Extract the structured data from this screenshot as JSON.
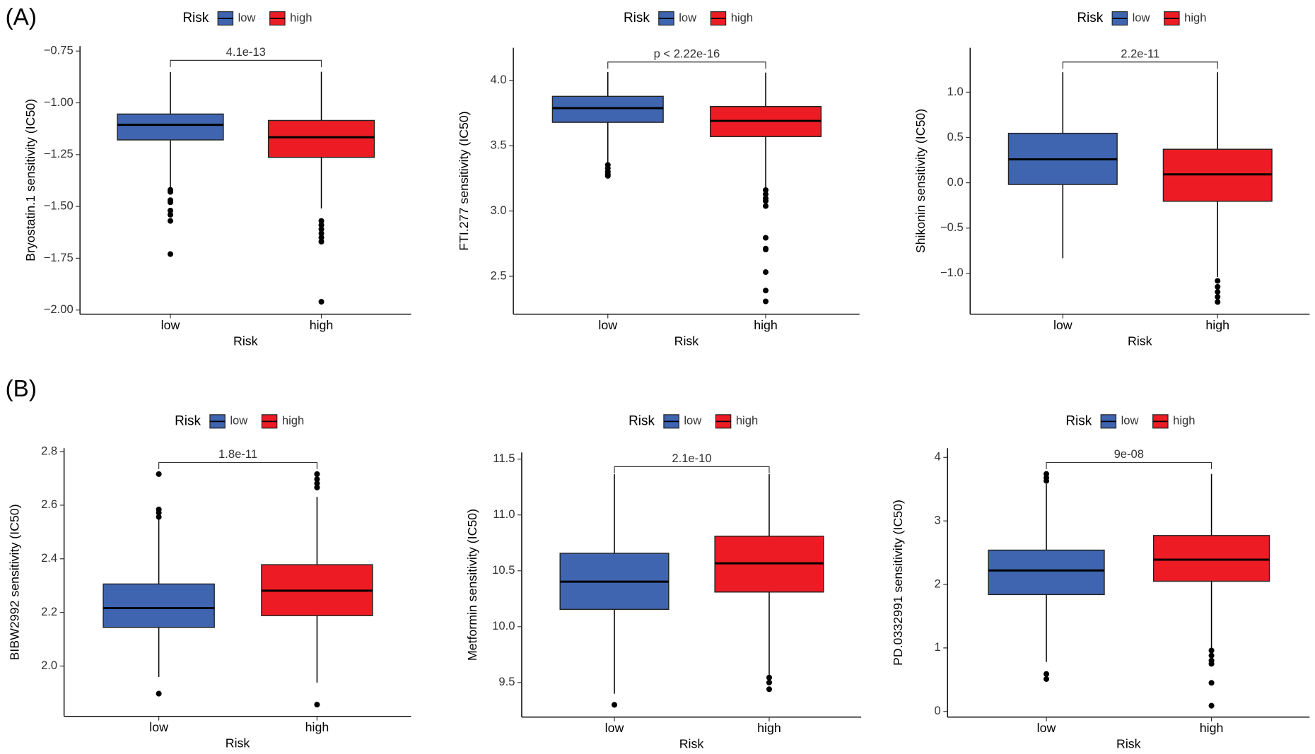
{
  "panel_labels": [
    "(A)",
    "(B)"
  ],
  "chart_data": [
    {
      "type": "box",
      "ylabel": "Bryostatin.1 sensitivity (IC50)",
      "xlabel": "Risk",
      "legend_title": "Risk",
      "annotation": "4.1e-13",
      "categories": [
        "low",
        "high"
      ],
      "ylim": [
        -2.02,
        -0.726
      ],
      "yticks": [
        {
          "value": -0.75,
          "label": "−0.75"
        },
        {
          "value": -1.0,
          "label": "−1.00"
        },
        {
          "value": -1.25,
          "label": "−1.25"
        },
        {
          "value": -1.5,
          "label": "−1.50"
        },
        {
          "value": -1.75,
          "label": "−1.75"
        },
        {
          "value": -2.0,
          "label": "−2.00"
        }
      ],
      "series": [
        {
          "name": "low",
          "color": "#3f65b0",
          "values": {
            "whisker_low": -1.413,
            "q1": -1.179,
            "median": -1.106,
            "q3": -1.054,
            "whisker_high": -0.851,
            "outliers": [
              -1.42,
              -1.43,
              -1.47,
              -1.48,
              -1.52,
              -1.54,
              -1.57,
              -1.73
            ]
          }
        },
        {
          "name": "high",
          "color": "#ed1c24",
          "values": {
            "whisker_low": -1.51,
            "q1": -1.263,
            "median": -1.166,
            "q3": -1.085,
            "whisker_high": -0.85,
            "outliers": [
              -1.57,
              -1.59,
              -1.61,
              -1.63,
              -1.65,
              -1.67,
              -1.96
            ]
          }
        }
      ]
    },
    {
      "type": "box",
      "ylabel": "FTI.277 sensitivity (IC50)",
      "xlabel": "Risk",
      "legend_title": "Risk",
      "annotation": "p < 2.22e-16",
      "categories": [
        "low",
        "high"
      ],
      "ylim": [
        2.21,
        4.25
      ],
      "yticks": [
        {
          "value": 4.0,
          "label": "4.0"
        },
        3.5,
        {
          "value": 3.0,
          "label": "3.0"
        },
        2.5
      ],
      "series": [
        {
          "name": "low",
          "color": "#3f65b0",
          "values": {
            "whisker_low": 3.365,
            "q1": 3.679,
            "median": 3.788,
            "q3": 3.878,
            "whisker_high": 4.064,
            "outliers": [
              3.353,
              3.327,
              3.301,
              3.282,
              3.269
            ]
          }
        },
        {
          "name": "high",
          "color": "#ed1c24",
          "values": {
            "whisker_low": 3.17,
            "q1": 3.57,
            "median": 3.69,
            "q3": 3.8,
            "whisker_high": 4.06,
            "outliers": [
              3.16,
              3.128,
              3.096,
              3.077,
              3.038,
              2.795,
              2.712,
              2.705,
              2.532,
              2.391,
              2.308
            ]
          }
        }
      ]
    },
    {
      "type": "box",
      "ylabel": "Shikonin sensitivity (IC50)",
      "xlabel": "Risk",
      "legend_title": "Risk",
      "annotation": "2.2e-11",
      "categories": [
        "low",
        "high"
      ],
      "ylim": [
        -1.45,
        1.49
      ],
      "yticks": [
        {
          "value": 1.0,
          "label": "1.0"
        },
        0.5,
        {
          "value": 0.0,
          "label": "0.0"
        },
        {
          "value": -0.5,
          "label": "−0.5"
        },
        {
          "value": -1.0,
          "label": "−1.0"
        }
      ],
      "series": [
        {
          "name": "low",
          "color": "#3f65b0",
          "values": {
            "whisker_low": -0.833,
            "q1": -0.019,
            "median": 0.259,
            "q3": 0.546,
            "whisker_high": 1.22,
            "outliers": []
          }
        },
        {
          "name": "high",
          "color": "#ed1c24",
          "values": {
            "whisker_low": -1.04,
            "q1": -0.204,
            "median": 0.093,
            "q3": 0.37,
            "whisker_high": 1.22,
            "outliers": [
              -1.083,
              -1.148,
              -1.204,
              -1.259,
              -1.315
            ]
          }
        }
      ]
    },
    {
      "type": "box",
      "ylabel": "BIBW2992 sensitivity (IC50)",
      "xlabel": "Risk",
      "legend_title": "Risk",
      "annotation": "1.8e-11",
      "categories": [
        "low",
        "high"
      ],
      "ylim": [
        1.8125,
        2.8125
      ],
      "yticks": [
        2.8,
        2.6,
        2.4,
        2.2,
        {
          "value": 2.0,
          "label": "2.0"
        }
      ],
      "series": [
        {
          "name": "low",
          "color": "#3f65b0",
          "values": {
            "whisker_low": 1.959,
            "q1": 2.144,
            "median": 2.216,
            "q3": 2.306,
            "whisker_high": 2.547,
            "outliers": [
              2.716,
              2.584,
              2.572,
              2.556,
              1.897
            ]
          }
        },
        {
          "name": "high",
          "color": "#ed1c24",
          "values": {
            "whisker_low": 1.938,
            "q1": 2.188,
            "median": 2.281,
            "q3": 2.378,
            "whisker_high": 2.631,
            "outliers": [
              2.716,
              2.697,
              2.681,
              2.666,
              1.856
            ]
          }
        }
      ]
    },
    {
      "type": "box",
      "ylabel": "Metformin sensitivity (IC50)",
      "xlabel": "Risk",
      "legend_title": "Risk",
      "annotation": "2.1e-10",
      "categories": [
        "low",
        "high"
      ],
      "ylim": [
        9.19,
        11.56
      ],
      "yticks": [
        11.5,
        {
          "value": 11.0,
          "label": "11.0"
        },
        10.5,
        {
          "value": 10.0,
          "label": "10.0"
        },
        9.5
      ],
      "series": [
        {
          "name": "low",
          "color": "#3f65b0",
          "values": {
            "whisker_low": 9.4,
            "q1": 10.155,
            "median": 10.403,
            "q3": 10.657,
            "whisker_high": 11.365,
            "outliers": [
              9.3
            ]
          }
        },
        {
          "name": "high",
          "color": "#ed1c24",
          "values": {
            "whisker_low": 9.57,
            "q1": 10.31,
            "median": 10.567,
            "q3": 10.81,
            "whisker_high": 11.365,
            "outliers": [
              9.545,
              9.5,
              9.44
            ]
          }
        }
      ]
    },
    {
      "type": "box",
      "ylabel": "PD.0332991 sensitivity (IC50)",
      "xlabel": "Risk",
      "legend_title": "Risk",
      "annotation": "9e-08",
      "categories": [
        "low",
        "high"
      ],
      "ylim": [
        -0.09,
        4.145
      ],
      "yticks": [
        4,
        3,
        2,
        1,
        0
      ],
      "series": [
        {
          "name": "low",
          "color": "#3f65b0",
          "values": {
            "whisker_low": 0.78,
            "q1": 1.84,
            "median": 2.22,
            "q3": 2.54,
            "whisker_high": 3.58,
            "outliers": [
              3.74,
              3.68,
              3.63,
              0.59,
              0.51
            ]
          }
        },
        {
          "name": "high",
          "color": "#ed1c24",
          "values": {
            "whisker_low": 1.0,
            "q1": 2.05,
            "median": 2.39,
            "q3": 2.77,
            "whisker_high": 3.74,
            "outliers": [
              0.96,
              0.88,
              0.8,
              0.75,
              0.45,
              0.09
            ]
          }
        }
      ]
    }
  ]
}
